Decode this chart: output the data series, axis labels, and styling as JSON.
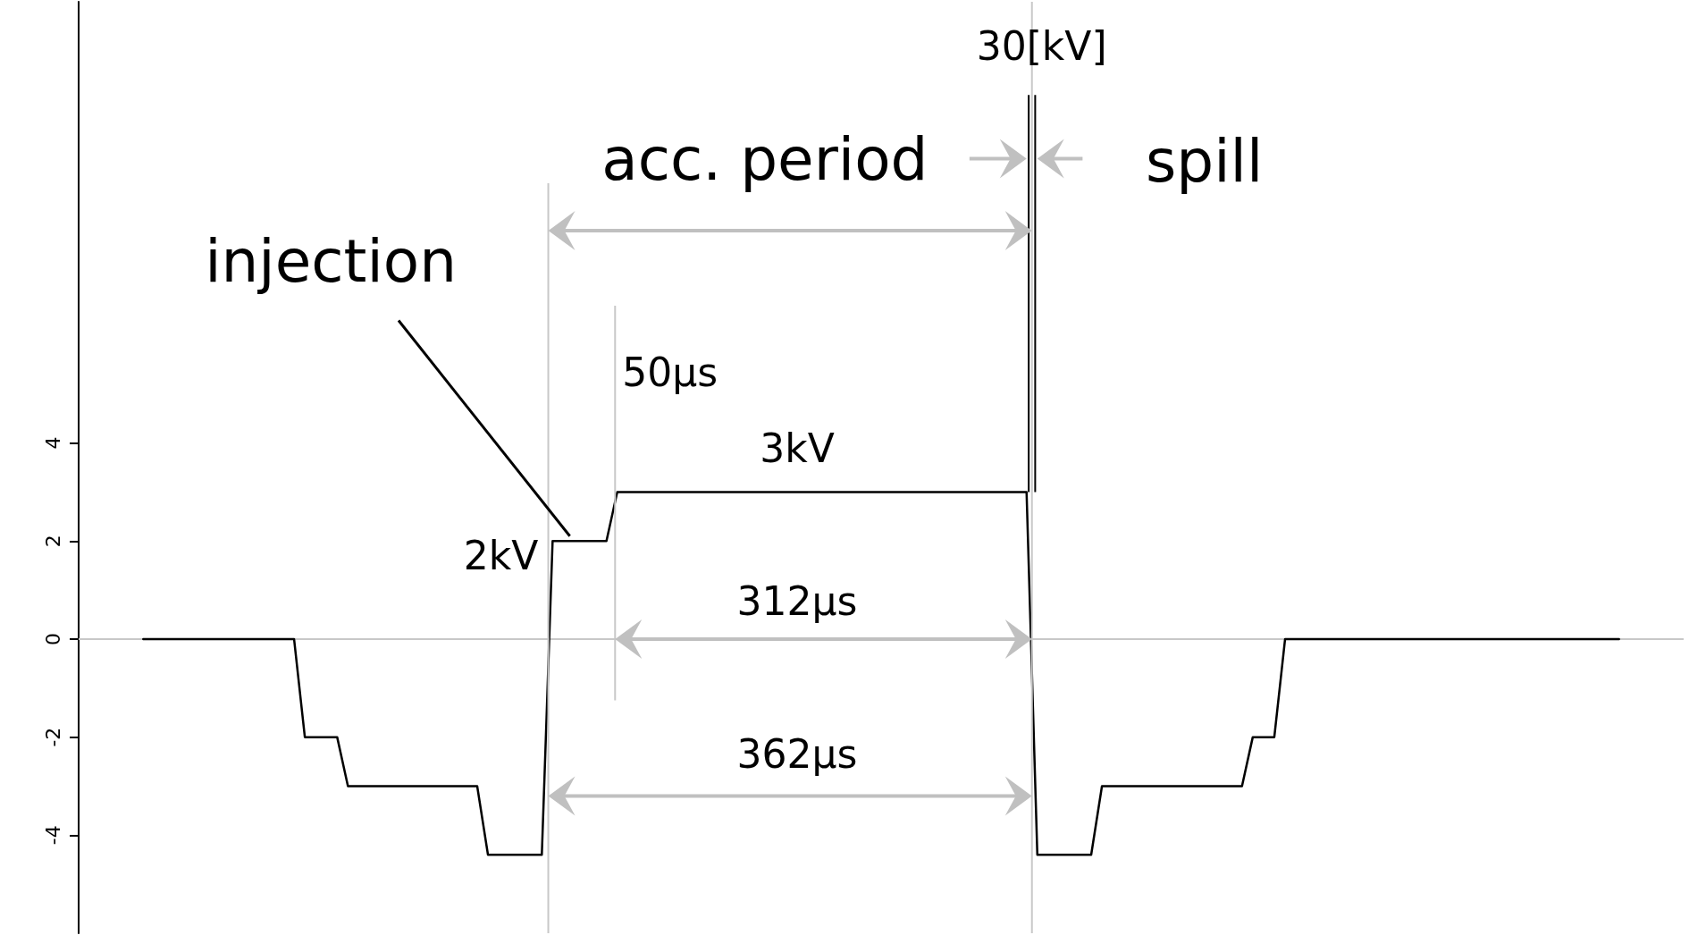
{
  "chart_data": {
    "type": "line",
    "categories": [
      null,
      null,
      null,
      null,
      null,
      null,
      null,
      null,
      null,
      null,
      null,
      null,
      null,
      null,
      null,
      null,
      null,
      null,
      null,
      null,
      null,
      null,
      null,
      null,
      null,
      null,
      null,
      null,
      null,
      null,
      null,
      null,
      null,
      null,
      null,
      null,
      null,
      null,
      null,
      null,
      null,
      null,
      null,
      null,
      null,
      null,
      null,
      null,
      null,
      null,
      null,
      null,
      null,
      null,
      null,
      null,
      null,
      null,
      null,
      null,
      null,
      null,
      null,
      null,
      null,
      null,
      null,
      null,
      null,
      null,
      null,
      null,
      null,
      null,
      null,
      null,
      null,
      null,
      null,
      null,
      null,
      null,
      null,
      null,
      null,
      null,
      null,
      null,
      null,
      null,
      null,
      null,
      null,
      null,
      null,
      null,
      null,
      null,
      null,
      null,
      null,
      null,
      null,
      null,
      null,
      null,
      null,
      null,
      null,
      null,
      null,
      null,
      null,
      null,
      null,
      null,
      null,
      null,
      null,
      null,
      null,
      null,
      null,
      null,
      null,
      null,
      null,
      null,
      null,
      null,
      null,
      null,
      null,
      null,
      null,
      null,
      null,
      null,
      null,
      null,
      null,
      null,
      null,
      null,
      null,
      null,
      null,
      null,
      null,
      null
    ],
    "values": [
      null,
      null,
      null,
      null,
      null,
      null,
      0,
      0,
      0,
      0,
      0,
      0,
      0,
      0,
      0,
      0,
      0,
      0,
      0,
      0,
      0,
      -2,
      -2,
      -2,
      -2,
      -3,
      -3,
      -3,
      -3,
      -3,
      -3,
      -3,
      -3,
      -3,
      -3,
      -3,
      -3,
      -3,
      -4.4,
      -4.4,
      -4.4,
      -4.4,
      -4.4,
      -4.4,
      2,
      2,
      2,
      2,
      2,
      2,
      3,
      3,
      3,
      3,
      3,
      3,
      3,
      3,
      3,
      3,
      3,
      3,
      3,
      3,
      3,
      3,
      3,
      3,
      3,
      3,
      3,
      3,
      3,
      3,
      3,
      3,
      3,
      3,
      3,
      3,
      3,
      3,
      3,
      3,
      3,
      3,
      3,
      3,
      3,
      -4.4,
      -4.4,
      -4.4,
      -4.4,
      -4.4,
      -4.4,
      -3,
      -3,
      -3,
      -3,
      -3,
      -3,
      -3,
      -3,
      -3,
      -3,
      -3,
      -3,
      -3,
      -3,
      -2,
      -2,
      -2,
      0,
      0,
      0,
      0,
      0,
      0,
      0,
      0,
      0,
      0,
      0,
      0,
      0,
      0,
      0,
      0,
      0,
      0,
      0,
      0,
      0,
      0,
      0,
      0,
      0,
      0,
      0,
      0,
      0,
      0,
      0,
      0,
      null,
      null,
      null,
      null,
      null,
      null
    ],
    "color": "#000000",
    "ylim": [
      -6,
      13
    ],
    "yticks": [
      -4,
      -2,
      0,
      2,
      4
    ],
    "tick_labels": "y",
    "marker": "none",
    "line_style": "solid",
    "ref_lines": [
      {
        "axis": "y",
        "value": 0,
        "color": "#c8c8c8"
      }
    ],
    "annotations": [
      "injection",
      "acc. period",
      "spill",
      "2kV",
      "3kV",
      "50µs",
      "312µs",
      "362µs",
      "30[kV]"
    ]
  }
}
